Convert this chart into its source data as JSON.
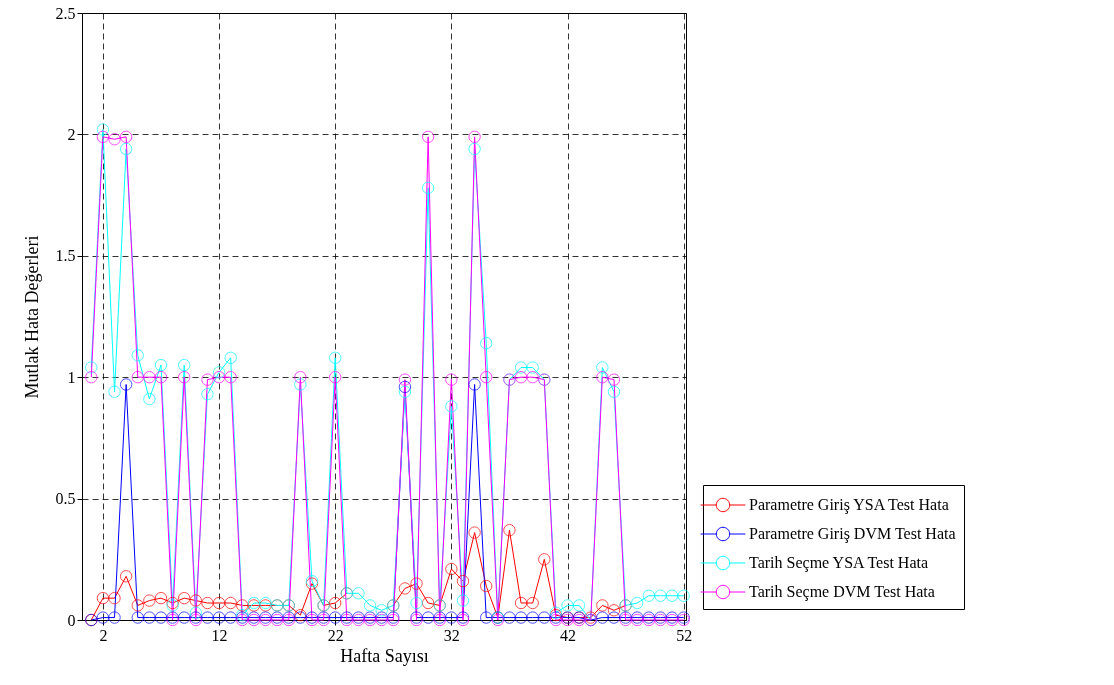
{
  "chart_data": {
    "type": "line",
    "xlabel": "Hafta Sayısı",
    "ylabel": "Mutlak Hata Değerleri",
    "x": [
      1,
      2,
      3,
      4,
      5,
      6,
      7,
      8,
      9,
      10,
      11,
      12,
      13,
      14,
      15,
      16,
      17,
      18,
      19,
      20,
      21,
      22,
      23,
      24,
      25,
      26,
      27,
      28,
      29,
      30,
      31,
      32,
      33,
      34,
      35,
      36,
      37,
      38,
      39,
      40,
      41,
      42,
      43,
      44,
      45,
      46,
      47,
      48,
      49,
      50,
      51,
      52
    ],
    "xlim": [
      0.2,
      52.2
    ],
    "xticks": [
      2,
      12,
      22,
      32,
      42,
      52
    ],
    "ylim": [
      0,
      2.5
    ],
    "yticks": [
      0,
      0.5,
      1,
      1.5,
      2,
      2.5
    ],
    "grid": true,
    "legend": "bottom right",
    "marker": "circle",
    "line_style": "solid",
    "series": [
      {
        "name": "Parametre Giriş YSA Test Hata",
        "color": "#ff0000",
        "values": [
          0,
          0.09,
          0.09,
          0.18,
          0.06,
          0.08,
          0.09,
          0.07,
          0.09,
          0.08,
          0.07,
          0.07,
          0.07,
          0.06,
          0.06,
          0.06,
          0.06,
          0.06,
          0.02,
          0.15,
          0.06,
          0.07,
          0.11,
          null,
          null,
          null,
          0.06,
          0.13,
          0.15,
          0.07,
          0.06,
          0.21,
          0.16,
          0.36,
          0.14,
          0.01,
          0.37,
          0.07,
          0.07,
          0.25,
          0.02,
          0.01,
          0.01,
          0.01,
          0.06,
          0.04,
          0.06,
          null,
          null,
          null,
          null,
          null
        ]
      },
      {
        "name": "Parametre Giriş DVM Test Hata",
        "color": "#0000ff",
        "values": [
          0,
          0.01,
          0.01,
          0.97,
          0.01,
          0.01,
          0.01,
          0.01,
          0.01,
          0.01,
          0.01,
          0.01,
          0.01,
          0.01,
          0.01,
          0.01,
          0.01,
          0.01,
          0.01,
          0.01,
          0.01,
          0.01,
          0.01,
          0.01,
          0.01,
          0.01,
          0.01,
          0.96,
          0.01,
          0.01,
          0.01,
          0.01,
          0.01,
          0.97,
          0.01,
          0.01,
          0.01,
          0.01,
          0.01,
          0.01,
          0.01,
          0.01,
          0.01,
          0,
          0.01,
          0.01,
          0.01,
          0.01,
          0.01,
          0.01,
          0.01,
          0.01
        ]
      },
      {
        "name": "Tarih Seçme YSA Test Hata",
        "color": "#00ffff",
        "values": [
          1.04,
          2.02,
          0.94,
          1.94,
          1.09,
          0.91,
          1.05,
          0.06,
          1.05,
          0.03,
          0.93,
          1.02,
          1.08,
          0.02,
          0.07,
          0.07,
          0.06,
          0.06,
          0.97,
          0.16,
          0.06,
          1.08,
          0.11,
          0.11,
          0.06,
          0.04,
          0.06,
          0.94,
          0.07,
          1.78,
          0.06,
          0.88,
          0.08,
          1.94,
          1.14,
          0.01,
          0.99,
          1.04,
          1.04,
          0.99,
          0.03,
          0.06,
          0.06,
          0,
          1.04,
          0.94,
          0.06,
          0.07,
          0.1,
          0.1,
          0.1,
          0.1
        ]
      },
      {
        "name": "Tarih Seçme DVM Test Hata",
        "color": "#ff00ff",
        "values": [
          1,
          1.99,
          1.98,
          1.99,
          1,
          1,
          1,
          0,
          1,
          0,
          0.99,
          1,
          1,
          0,
          0,
          0,
          0,
          0,
          1,
          0,
          0,
          1,
          0,
          0,
          0,
          0,
          0,
          0.99,
          0,
          1.99,
          0,
          0.99,
          0,
          1.99,
          1,
          0,
          0.99,
          1,
          1,
          0.99,
          0,
          0,
          0,
          0,
          1,
          0.99,
          0,
          0,
          0,
          0,
          0,
          0
        ]
      }
    ]
  }
}
